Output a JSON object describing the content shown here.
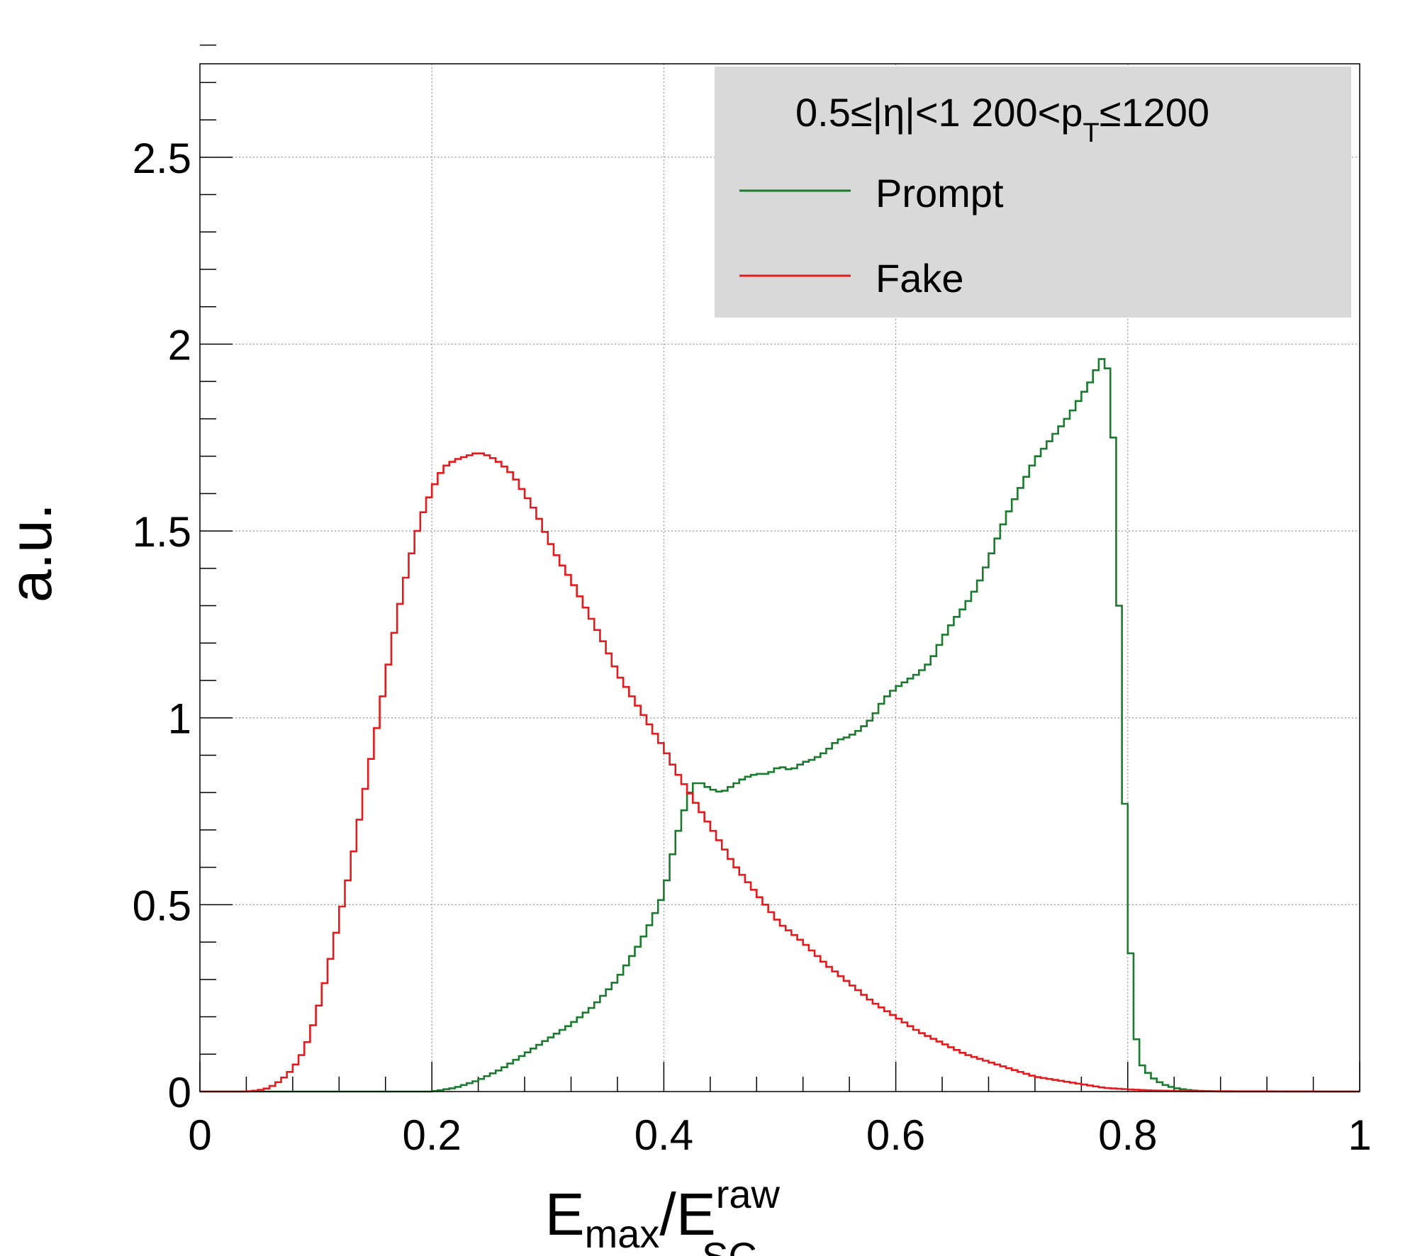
{
  "chart_data": {
    "type": "line",
    "style": "step-histogram",
    "xlim": [
      0,
      1
    ],
    "ylim": [
      0,
      2.75
    ],
    "grid": true,
    "xticks": [
      0,
      0.2,
      0.4,
      0.6,
      0.8,
      1
    ],
    "yticks": [
      0,
      0.5,
      1,
      1.5,
      2,
      2.5
    ],
    "xtick_labels": [
      "0",
      "0.2",
      "0.4",
      "0.6",
      "0.8",
      "1"
    ],
    "ytick_labels": [
      "0",
      "0.5",
      "1",
      "1.5",
      "2",
      "2.5"
    ],
    "xlabel": {
      "main": "E",
      "sub1": "max",
      "slash": "/E",
      "sup": "raw",
      "sub2": "SC"
    },
    "ylabel": "a.u.",
    "legend": {
      "placement": "top-right",
      "background": "#d9d9d9",
      "header": {
        "part1": "0.5≤|η|<1  200<p",
        "sub": "T",
        "part2": "≤1200"
      }
    },
    "bin_width": 0.005,
    "series": [
      {
        "name": "Prompt",
        "color": "#1a7a2e",
        "x": [
          0.0,
          0.05,
          0.1,
          0.15,
          0.2,
          0.22,
          0.24,
          0.26,
          0.28,
          0.3,
          0.32,
          0.34,
          0.36,
          0.38,
          0.39,
          0.4,
          0.41,
          0.42,
          0.425,
          0.43,
          0.44,
          0.45,
          0.46,
          0.47,
          0.48,
          0.49,
          0.5,
          0.51,
          0.52,
          0.53,
          0.54,
          0.55,
          0.56,
          0.57,
          0.58,
          0.59,
          0.6,
          0.61,
          0.62,
          0.63,
          0.64,
          0.65,
          0.66,
          0.67,
          0.68,
          0.69,
          0.7,
          0.71,
          0.72,
          0.73,
          0.74,
          0.75,
          0.76,
          0.77,
          0.775,
          0.78,
          0.785,
          0.79,
          0.795,
          0.8,
          0.805,
          0.81,
          0.82,
          0.83,
          0.84,
          0.85,
          0.86,
          0.88,
          0.9,
          1.0
        ],
        "y": [
          0,
          0,
          0,
          0,
          0,
          0.01,
          0.03,
          0.06,
          0.1,
          0.14,
          0.18,
          0.23,
          0.3,
          0.4,
          0.46,
          0.53,
          0.67,
          0.78,
          0.82,
          0.83,
          0.81,
          0.8,
          0.82,
          0.84,
          0.85,
          0.85,
          0.87,
          0.86,
          0.88,
          0.89,
          0.91,
          0.94,
          0.95,
          0.97,
          1.0,
          1.05,
          1.08,
          1.1,
          1.12,
          1.15,
          1.21,
          1.26,
          1.3,
          1.35,
          1.42,
          1.5,
          1.57,
          1.63,
          1.69,
          1.73,
          1.77,
          1.81,
          1.86,
          1.91,
          1.95,
          1.97,
          1.9,
          1.6,
          1.0,
          0.54,
          0.2,
          0.08,
          0.04,
          0.02,
          0.01,
          0.005,
          0.002,
          0,
          0,
          0
        ]
      },
      {
        "name": "Fake",
        "color": "#e41a1c",
        "x": [
          0.0,
          0.04,
          0.05,
          0.06,
          0.07,
          0.08,
          0.09,
          0.1,
          0.11,
          0.12,
          0.13,
          0.14,
          0.15,
          0.16,
          0.17,
          0.18,
          0.19,
          0.2,
          0.21,
          0.22,
          0.23,
          0.24,
          0.25,
          0.26,
          0.27,
          0.28,
          0.29,
          0.3,
          0.31,
          0.32,
          0.33,
          0.34,
          0.35,
          0.36,
          0.37,
          0.38,
          0.39,
          0.4,
          0.41,
          0.42,
          0.43,
          0.44,
          0.45,
          0.46,
          0.47,
          0.48,
          0.49,
          0.5,
          0.52,
          0.54,
          0.56,
          0.58,
          0.6,
          0.62,
          0.64,
          0.66,
          0.68,
          0.7,
          0.72,
          0.74,
          0.76,
          0.78,
          0.8,
          0.82,
          0.85,
          1.0
        ],
        "y": [
          0,
          0,
          0.003,
          0.01,
          0.03,
          0.06,
          0.11,
          0.2,
          0.32,
          0.46,
          0.6,
          0.77,
          0.93,
          1.1,
          1.27,
          1.41,
          1.53,
          1.61,
          1.67,
          1.69,
          1.7,
          1.71,
          1.7,
          1.68,
          1.65,
          1.6,
          1.55,
          1.48,
          1.42,
          1.37,
          1.31,
          1.25,
          1.19,
          1.12,
          1.07,
          1.02,
          0.97,
          0.92,
          0.86,
          0.81,
          0.76,
          0.71,
          0.66,
          0.61,
          0.57,
          0.53,
          0.49,
          0.45,
          0.4,
          0.34,
          0.29,
          0.24,
          0.2,
          0.16,
          0.13,
          0.1,
          0.08,
          0.06,
          0.04,
          0.03,
          0.02,
          0.01,
          0.006,
          0.003,
          0.001,
          0
        ]
      }
    ]
  }
}
